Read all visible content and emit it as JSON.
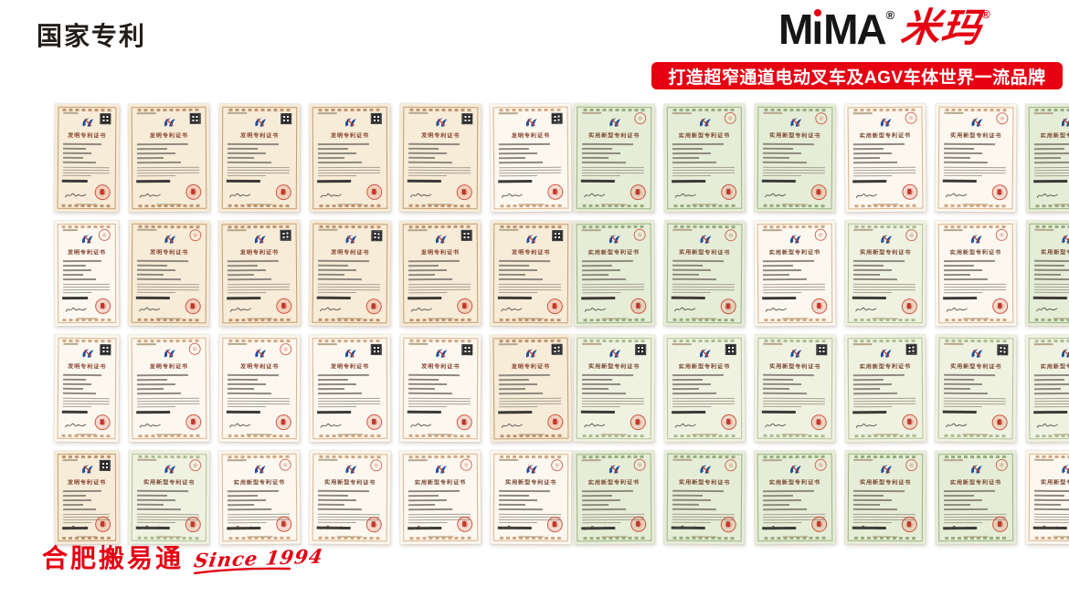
{
  "page": {
    "title": "国家专利",
    "background": "#ffffff"
  },
  "brand": {
    "logo_m1": "M",
    "logo_i": "ı",
    "logo_m2": "MA",
    "logo_reg": "®",
    "logo_cn": "米玛",
    "logo_cn_reg": "®",
    "slogan": "打造超窄通道电动叉车及AGV车体世界一流品牌",
    "accent_color": "#e60012"
  },
  "footer": {
    "company": "合肥搬易通",
    "since": "Since 1994"
  },
  "certificates": {
    "titles": {
      "invention": "发明专利证书",
      "utility": "实用新型专利证书"
    },
    "colors": {
      "seal_red": "#d0392b",
      "stamp_red": "#c73e2d",
      "cnipa_blue": "#1e4e9d",
      "invention_paper": "#f7ecd8",
      "invention_border": "#c49a6e",
      "utility_paper": "#e6edd7",
      "utility_border": "#9bb182"
    },
    "groups": [
      {
        "id": "left",
        "rows": [
          [
            {
              "type": "invention",
              "tone": "cream",
              "corner": "qr"
            },
            {
              "type": "invention",
              "tone": "cream",
              "corner": "qr"
            },
            {
              "type": "invention",
              "tone": "cream",
              "corner": "qr"
            },
            {
              "type": "invention",
              "tone": "cream",
              "corner": "qr"
            },
            {
              "type": "invention",
              "tone": "cream",
              "corner": "qr"
            },
            {
              "type": "invention",
              "tone": "white",
              "corner": "qr"
            }
          ],
          [
            {
              "type": "invention",
              "tone": "white",
              "corner": "stamp"
            },
            {
              "type": "invention",
              "tone": "cream",
              "corner": "stamp"
            },
            {
              "type": "invention",
              "tone": "cream",
              "corner": "qr"
            },
            {
              "type": "invention",
              "tone": "cream",
              "corner": "qr"
            },
            {
              "type": "invention",
              "tone": "cream",
              "corner": "qr"
            },
            {
              "type": "invention",
              "tone": "cream",
              "corner": "qr"
            }
          ],
          [
            {
              "type": "invention",
              "tone": "white",
              "corner": "qr"
            },
            {
              "type": "invention",
              "tone": "white",
              "corner": "stamp"
            },
            {
              "type": "invention",
              "tone": "white",
              "corner": "stamp"
            },
            {
              "type": "invention",
              "tone": "white",
              "corner": "qr"
            },
            {
              "type": "invention",
              "tone": "white",
              "corner": "qr"
            },
            {
              "type": "invention",
              "tone": "cream",
              "corner": "qr"
            }
          ],
          [
            {
              "type": "invention",
              "tone": "cream",
              "corner": "qr"
            },
            {
              "type": "utility",
              "tone": "palegreen",
              "corner": "stamp"
            },
            {
              "type": "utility",
              "tone": "white",
              "corner": "stamp"
            },
            {
              "type": "utility",
              "tone": "white",
              "corner": "stamp"
            },
            {
              "type": "utility",
              "tone": "white",
              "corner": "stamp"
            },
            {
              "type": "utility",
              "tone": "white",
              "corner": "stamp"
            }
          ]
        ]
      },
      {
        "id": "right",
        "rows": [
          [
            {
              "type": "utility",
              "tone": "green",
              "corner": "stamp"
            },
            {
              "type": "utility",
              "tone": "green",
              "corner": "stamp"
            },
            {
              "type": "utility",
              "tone": "green",
              "corner": "stamp"
            },
            {
              "type": "utility",
              "tone": "white",
              "corner": "stamp"
            },
            {
              "type": "utility",
              "tone": "white",
              "corner": "stamp"
            },
            {
              "type": "utility",
              "tone": "green",
              "corner": "stamp"
            }
          ],
          [
            {
              "type": "utility",
              "tone": "green",
              "corner": "stamp"
            },
            {
              "type": "utility",
              "tone": "green",
              "corner": "stamp"
            },
            {
              "type": "utility",
              "tone": "white",
              "corner": "stamp"
            },
            {
              "type": "utility",
              "tone": "palegreen",
              "corner": "stamp"
            },
            {
              "type": "utility",
              "tone": "white",
              "corner": "stamp"
            },
            {
              "type": "utility",
              "tone": "green",
              "corner": "stamp"
            }
          ],
          [
            {
              "type": "utility",
              "tone": "palegreen",
              "corner": "qr"
            },
            {
              "type": "utility",
              "tone": "palegreen",
              "corner": "qr"
            },
            {
              "type": "utility",
              "tone": "palegreen",
              "corner": "qr"
            },
            {
              "type": "utility",
              "tone": "palegreen",
              "corner": "qr"
            },
            {
              "type": "utility",
              "tone": "palegreen",
              "corner": "qr"
            },
            {
              "type": "utility",
              "tone": "palegreen",
              "corner": "qr"
            }
          ],
          [
            {
              "type": "utility",
              "tone": "green",
              "corner": "stamp"
            },
            {
              "type": "utility",
              "tone": "green",
              "corner": "stamp"
            },
            {
              "type": "utility",
              "tone": "green",
              "corner": "stamp"
            },
            {
              "type": "utility",
              "tone": "green",
              "corner": "stamp"
            },
            {
              "type": "utility",
              "tone": "green",
              "corner": "stamp"
            },
            {
              "type": "utility",
              "tone": "white",
              "corner": "stamp"
            }
          ]
        ]
      }
    ]
  }
}
